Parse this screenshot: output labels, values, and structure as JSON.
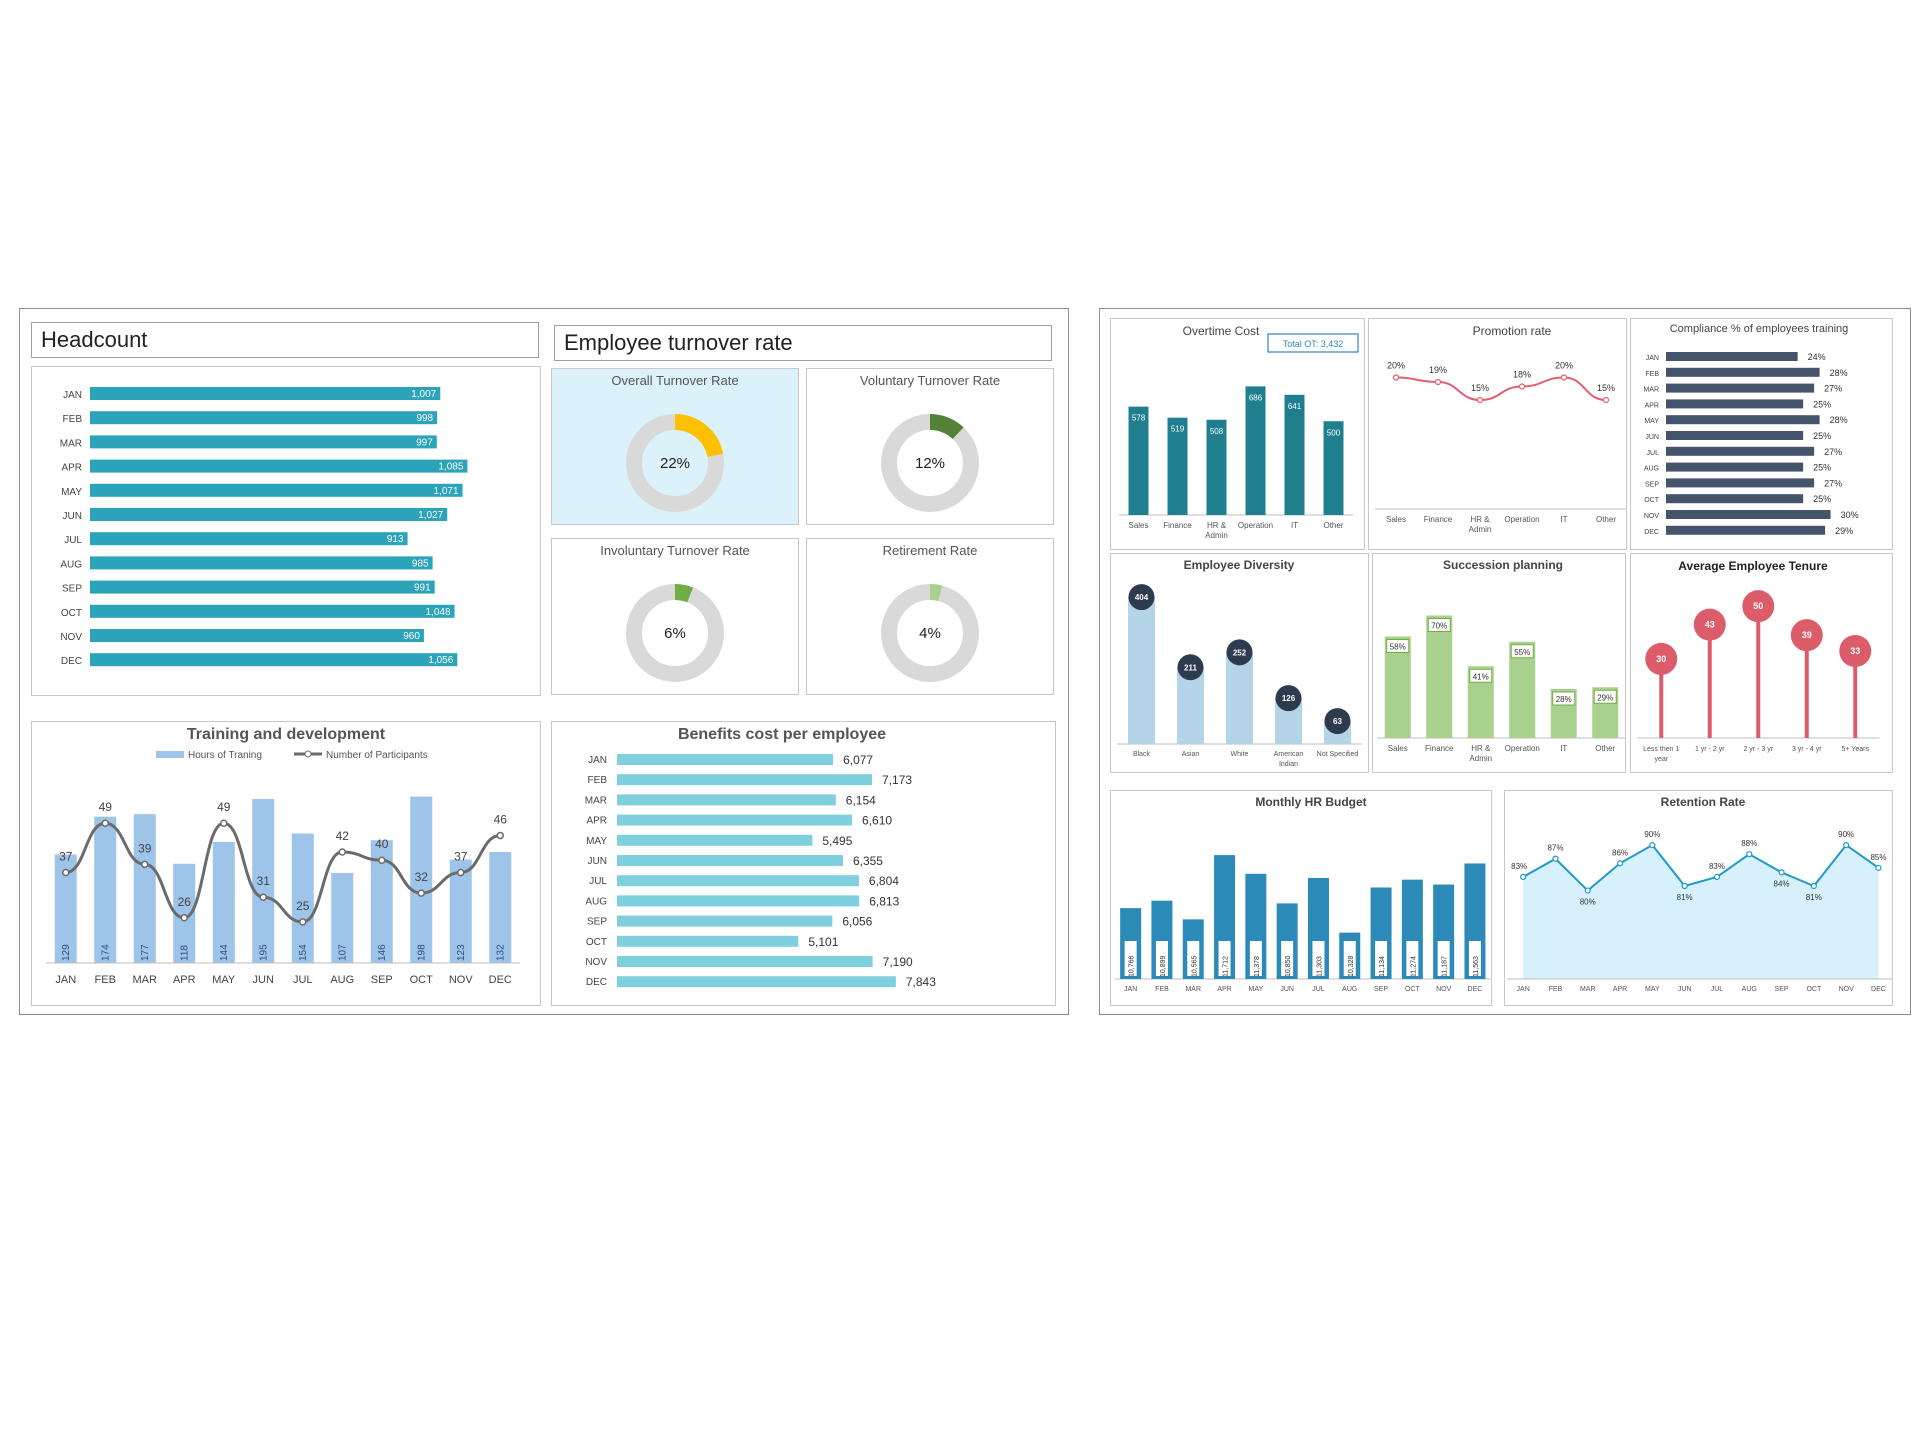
{
  "colors": {
    "teal_bar": "#2ba3b8",
    "light_teal_bar": "#7fd0df",
    "light_blue_bar": "#9fc4ea",
    "gray_line": "#6b6b6b",
    "overall_bg": "#dbf2fa",
    "donut_track": "#d9d9d9",
    "donut_yellow": "#ffc000",
    "donut_dark_green": "#548235",
    "donut_green": "#70ad47",
    "donut_light_green": "#a9d08e",
    "dark_teal": "#1f7f8f",
    "pink_line": "#e06072",
    "navy_bar": "#44546a",
    "diversity_bar": "#b4d5e8",
    "diversity_dot": "#2e3b4e",
    "green_bar": "#a9d18e",
    "tenure": "#dd5c6a",
    "budget_bar": "#2c8ab8",
    "retention_line": "#1f9ac9",
    "retention_fill": "#d6f1fb"
  },
  "headcount": {
    "title": "Headcount",
    "chart_data": {
      "type": "bar",
      "orientation": "horizontal",
      "categories": [
        "JAN",
        "FEB",
        "MAR",
        "APR",
        "MAY",
        "JUN",
        "JUL",
        "AUG",
        "SEP",
        "OCT",
        "NOV",
        "DEC"
      ],
      "values": [
        1007,
        998,
        997,
        1085,
        1071,
        1027,
        913,
        985,
        991,
        1048,
        960,
        1056
      ],
      "labels": [
        "1,007",
        "998",
        "997",
        "1,085",
        "1,071",
        "1,027",
        "913",
        "985",
        "991",
        "1,048",
        "960",
        "1,056"
      ],
      "xlim": [
        0,
        1150
      ]
    }
  },
  "turnover": {
    "title": "Employee turnover rate",
    "gauges": [
      {
        "title": "Overall Turnover Rate",
        "value": 22,
        "label": "22%",
        "color": "#ffc000"
      },
      {
        "title": "Voluntary Turnover Rate",
        "value": 12,
        "label": "12%",
        "color": "#548235"
      },
      {
        "title": "Involuntary Turnover Rate",
        "value": 6,
        "label": "6%",
        "color": "#70ad47"
      },
      {
        "title": "Retirement Rate",
        "value": 4,
        "label": "4%",
        "color": "#a9d08e"
      }
    ]
  },
  "training": {
    "chart_data": {
      "type": "bar",
      "title": "Training and development",
      "categories": [
        "JAN",
        "FEB",
        "MAR",
        "APR",
        "MAY",
        "JUN",
        "JUL",
        "AUG",
        "SEP",
        "OCT",
        "NOV",
        "DEC"
      ],
      "series": [
        {
          "name": "Hours of Traning",
          "type": "bar",
          "values": [
            129,
            174,
            177,
            118,
            144,
            195,
            154,
            107,
            146,
            198,
            123,
            132
          ]
        },
        {
          "name": "Number of Participants",
          "type": "line",
          "values": [
            37,
            49,
            39,
            26,
            49,
            31,
            25,
            42,
            40,
            32,
            37,
            46
          ]
        }
      ],
      "ylim_bar": [
        0,
        220
      ],
      "ylim_line": [
        15,
        60
      ]
    }
  },
  "benefits": {
    "chart_data": {
      "type": "bar",
      "orientation": "horizontal",
      "title": "Benefits cost per employee",
      "categories": [
        "JAN",
        "FEB",
        "MAR",
        "APR",
        "MAY",
        "JUN",
        "JUL",
        "AUG",
        "SEP",
        "OCT",
        "NOV",
        "DEC"
      ],
      "values": [
        6077,
        7173,
        6154,
        6610,
        5495,
        6355,
        6804,
        6813,
        6056,
        5101,
        7190,
        7843
      ],
      "labels": [
        "6,077",
        "7,173",
        "6,154",
        "6,610",
        "5,495",
        "6,355",
        "6,804",
        "6,813",
        "6,056",
        "5,101",
        "7,190",
        "7,843"
      ],
      "xlim": [
        0,
        9000
      ]
    }
  },
  "overtime": {
    "badge": "Total OT: 3,432",
    "chart_data": {
      "type": "bar",
      "title": "Overtime Cost",
      "categories": [
        "Sales",
        "Finance",
        "HR & Admin",
        "Operation",
        "IT",
        "Other"
      ],
      "values": [
        578,
        519,
        508,
        686,
        641,
        500
      ],
      "ylim": [
        0,
        800
      ]
    }
  },
  "promotion": {
    "chart_data": {
      "type": "line",
      "title": "Promotion rate",
      "categories": [
        "Sales",
        "Finance",
        "HR & Admin",
        "Operation",
        "IT",
        "Other"
      ],
      "values": [
        20,
        19,
        15,
        18,
        20,
        15
      ],
      "labels": [
        "20%",
        "19%",
        "15%",
        "18%",
        "20%",
        "15%"
      ],
      "ylim": [
        5,
        25
      ]
    }
  },
  "compliance": {
    "chart_data": {
      "type": "bar",
      "orientation": "horizontal",
      "title": "Compliance % of employees training",
      "categories": [
        "JAN",
        "FEB",
        "MAR",
        "APR",
        "MAY",
        "JUN",
        "JUL",
        "AUG",
        "SEP",
        "OCT",
        "NOV",
        "DEC"
      ],
      "values": [
        24,
        28,
        27,
        25,
        28,
        25,
        27,
        25,
        27,
        25,
        30,
        29
      ],
      "labels": [
        "24%",
        "28%",
        "27%",
        "25%",
        "28%",
        "25%",
        "27%",
        "25%",
        "27%",
        "25%",
        "30%",
        "29%"
      ],
      "xlim": [
        0,
        35
      ]
    }
  },
  "diversity": {
    "chart_data": {
      "type": "bar",
      "title": "Employee Diversity",
      "categories": [
        "Black",
        "Asian",
        "White",
        "American Indian",
        "Not Specified"
      ],
      "values": [
        404,
        211,
        252,
        126,
        63
      ],
      "ylim": [
        0,
        440
      ]
    }
  },
  "succession": {
    "chart_data": {
      "type": "bar",
      "title": "Succession planning",
      "categories": [
        "Sales",
        "Finance",
        "HR & Admin",
        "Operation",
        "IT",
        "Other"
      ],
      "values": [
        58,
        70,
        41,
        55,
        28,
        29
      ],
      "labels": [
        "58%",
        "70%",
        "41%",
        "55%",
        "28%",
        "29%"
      ],
      "ylim": [
        0,
        80
      ]
    }
  },
  "tenure": {
    "chart_data": {
      "type": "bar",
      "title": "Average Employee Tenure",
      "categories": [
        "Less then 1 year",
        "1 yr - 2 yr",
        "2 yr - 3 yr",
        "3 yr - 4 yr",
        "5+ Years"
      ],
      "values": [
        30,
        43,
        50,
        39,
        33
      ],
      "ylim": [
        0,
        55
      ]
    }
  },
  "budget": {
    "chart_data": {
      "type": "bar",
      "title": "Monthly HR Budget",
      "categories": [
        "JAN",
        "FEB",
        "MAR",
        "APR",
        "MAY",
        "JUN",
        "JUL",
        "AUG",
        "SEP",
        "OCT",
        "NOV",
        "DEC"
      ],
      "values": [
        10766,
        10899,
        10565,
        11712,
        11378,
        10850,
        11303,
        10328,
        11134,
        11274,
        11187,
        11563
      ],
      "labels": [
        "10,766",
        "10,899",
        "10,565",
        "11,712",
        "11,378",
        "10,850",
        "11,303",
        "10,328",
        "11,134",
        "11,274",
        "11,187",
        "11,563"
      ],
      "ylim": [
        9500,
        12000
      ]
    }
  },
  "retention": {
    "chart_data": {
      "type": "area",
      "title": "Retention Rate",
      "categories": [
        "JAN",
        "FEB",
        "MAR",
        "APR",
        "MAY",
        "JUN",
        "JUL",
        "AUG",
        "SEP",
        "OCT",
        "NOV",
        "DEC"
      ],
      "values": [
        83,
        87,
        80,
        86,
        90,
        81,
        83,
        88,
        84,
        81,
        90,
        85
      ],
      "labels": [
        "83%",
        "87%",
        "80%",
        "86%",
        "90%",
        "81%",
        "83%",
        "88%",
        "84%",
        "81%",
        "90%",
        "85%"
      ],
      "ylim": [
        70,
        92
      ]
    }
  }
}
